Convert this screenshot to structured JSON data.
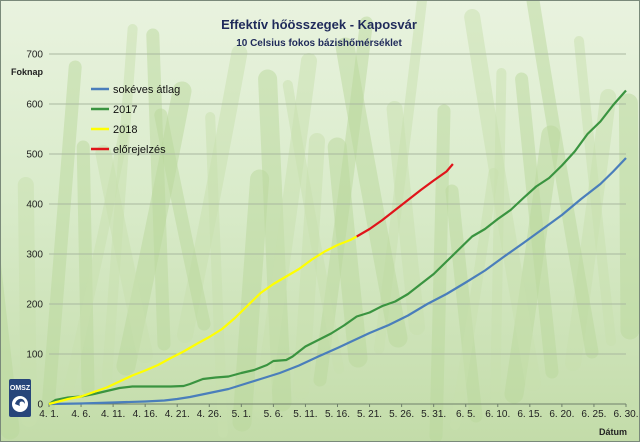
{
  "chart_data": {
    "type": "line",
    "title": "Effektív hőösszegek - Kaposvár",
    "subtitle": "10 Celsius fokos bázishőmérséklet",
    "ylabel": "Foknap",
    "xlabel": "Dátum",
    "ylim": [
      0,
      700
    ],
    "yticks": [
      0,
      100,
      200,
      300,
      400,
      500,
      600,
      700
    ],
    "xlim": [
      0,
      90
    ],
    "xticks": [
      {
        "x": 0,
        "label": "4. 1."
      },
      {
        "x": 5,
        "label": "4. 6."
      },
      {
        "x": 10,
        "label": "4. 11."
      },
      {
        "x": 15,
        "label": "4. 16."
      },
      {
        "x": 20,
        "label": "4. 21."
      },
      {
        "x": 25,
        "label": "4. 26."
      },
      {
        "x": 30,
        "label": "5. 1."
      },
      {
        "x": 35,
        "label": "5. 6."
      },
      {
        "x": 40,
        "label": "5. 11."
      },
      {
        "x": 45,
        "label": "5. 16."
      },
      {
        "x": 50,
        "label": "5. 21."
      },
      {
        "x": 55,
        "label": "5. 26."
      },
      {
        "x": 60,
        "label": "5. 31."
      },
      {
        "x": 65,
        "label": "6. 5."
      },
      {
        "x": 70,
        "label": "6. 10."
      },
      {
        "x": 75,
        "label": "6. 15."
      },
      {
        "x": 80,
        "label": "6. 20."
      },
      {
        "x": 85,
        "label": "6. 25."
      },
      {
        "x": 90,
        "label": "6. 30."
      }
    ],
    "grid": true,
    "legend_position": "top-left",
    "series": [
      {
        "name": "sokéves átlag",
        "color": "#4a7ebb",
        "points": [
          [
            0,
            0
          ],
          [
            5,
            1
          ],
          [
            10,
            3
          ],
          [
            15,
            5
          ],
          [
            18,
            7
          ],
          [
            20,
            10
          ],
          [
            22,
            14
          ],
          [
            25,
            22
          ],
          [
            28,
            30
          ],
          [
            30,
            38
          ],
          [
            33,
            50
          ],
          [
            36,
            62
          ],
          [
            39,
            77
          ],
          [
            42,
            95
          ],
          [
            45,
            112
          ],
          [
            48,
            130
          ],
          [
            50,
            142
          ],
          [
            53,
            158
          ],
          [
            56,
            177
          ],
          [
            59,
            200
          ],
          [
            62,
            220
          ],
          [
            65,
            243
          ],
          [
            68,
            267
          ],
          [
            71,
            295
          ],
          [
            74,
            322
          ],
          [
            77,
            350
          ],
          [
            80,
            378
          ],
          [
            83,
            410
          ],
          [
            86,
            440
          ],
          [
            88,
            465
          ],
          [
            90,
            492
          ]
        ]
      },
      {
        "name": "2017",
        "color": "#3a9440",
        "points": [
          [
            0,
            0
          ],
          [
            1,
            8
          ],
          [
            3,
            13
          ],
          [
            5,
            15
          ],
          [
            7,
            20
          ],
          [
            9,
            26
          ],
          [
            11,
            32
          ],
          [
            13,
            35
          ],
          [
            15,
            35
          ],
          [
            17,
            35
          ],
          [
            19,
            35
          ],
          [
            21,
            36
          ],
          [
            22,
            40
          ],
          [
            24,
            50
          ],
          [
            26,
            53
          ],
          [
            28,
            55
          ],
          [
            30,
            62
          ],
          [
            32,
            68
          ],
          [
            34,
            78
          ],
          [
            35,
            86
          ],
          [
            37,
            88
          ],
          [
            38,
            95
          ],
          [
            40,
            115
          ],
          [
            42,
            128
          ],
          [
            44,
            141
          ],
          [
            46,
            157
          ],
          [
            48,
            175
          ],
          [
            50,
            183
          ],
          [
            52,
            196
          ],
          [
            54,
            205
          ],
          [
            56,
            220
          ],
          [
            58,
            240
          ],
          [
            60,
            260
          ],
          [
            62,
            285
          ],
          [
            64,
            310
          ],
          [
            66,
            335
          ],
          [
            68,
            350
          ],
          [
            70,
            370
          ],
          [
            72,
            388
          ],
          [
            74,
            412
          ],
          [
            76,
            435
          ],
          [
            78,
            452
          ],
          [
            80,
            477
          ],
          [
            82,
            505
          ],
          [
            84,
            540
          ],
          [
            86,
            565
          ],
          [
            88,
            598
          ],
          [
            90,
            627
          ]
        ]
      },
      {
        "name": "2018",
        "color": "#ffff00",
        "points": [
          [
            0,
            0
          ],
          [
            3,
            10
          ],
          [
            5,
            15
          ],
          [
            7,
            24
          ],
          [
            9,
            33
          ],
          [
            11,
            45
          ],
          [
            13,
            57
          ],
          [
            15,
            67
          ],
          [
            17,
            78
          ],
          [
            19,
            92
          ],
          [
            21,
            105
          ],
          [
            23,
            120
          ],
          [
            25,
            134
          ],
          [
            27,
            150
          ],
          [
            29,
            172
          ],
          [
            31,
            197
          ],
          [
            33,
            222
          ],
          [
            35,
            240
          ],
          [
            37,
            255
          ],
          [
            39,
            270
          ],
          [
            41,
            289
          ],
          [
            43,
            305
          ],
          [
            45,
            318
          ],
          [
            47,
            328
          ],
          [
            48,
            335
          ]
        ]
      },
      {
        "name": "előrejelzés",
        "color": "#e0141a",
        "points": [
          [
            48,
            335
          ],
          [
            50,
            350
          ],
          [
            52,
            368
          ],
          [
            54,
            388
          ],
          [
            56,
            408
          ],
          [
            58,
            428
          ],
          [
            60,
            447
          ],
          [
            62,
            465
          ],
          [
            63,
            480
          ]
        ]
      }
    ]
  }
}
